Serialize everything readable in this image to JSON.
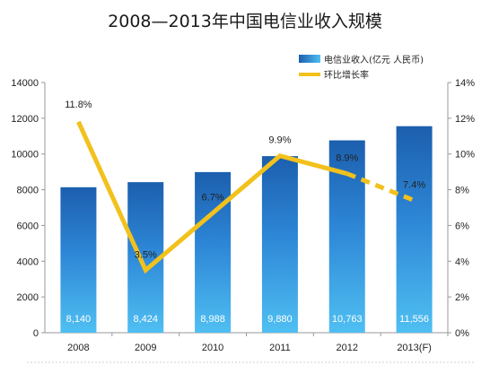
{
  "chart_data": {
    "type": "bar",
    "title": "2008—2013年中国电信业收入规模",
    "categories": [
      "2008",
      "2009",
      "2010",
      "2011",
      "2012",
      "2013(F)"
    ],
    "series": [
      {
        "name": "电信业收入(亿元 人民币)",
        "type": "bar",
        "axis": "left",
        "values": [
          8140,
          8424,
          8988,
          9880,
          10763,
          11556
        ],
        "labels": [
          "8,140",
          "8,424",
          "8,988",
          "9,880",
          "10,763",
          "11,556"
        ],
        "color": "#2e86d8"
      },
      {
        "name": "环比增长率",
        "type": "line",
        "axis": "right",
        "values": [
          11.8,
          3.5,
          6.7,
          9.9,
          8.9,
          7.4
        ],
        "labels": [
          "11.8%",
          "3.5%",
          "6.7%",
          "9.9%",
          "8.9%",
          "7.4%"
        ],
        "color": "#f2c11c",
        "dashed_last_segment": true
      }
    ],
    "y_left": {
      "min": 0,
      "max": 14000,
      "ticks": [
        "0",
        "2000",
        "4000",
        "6000",
        "8000",
        "10000",
        "12000",
        "14000"
      ]
    },
    "y_right": {
      "min": 0,
      "max": 14,
      "ticks": [
        "0%",
        "2%",
        "4%",
        "6%",
        "8%",
        "10%",
        "12%",
        "14%"
      ]
    },
    "legend_position": "top-right",
    "grid": false
  }
}
